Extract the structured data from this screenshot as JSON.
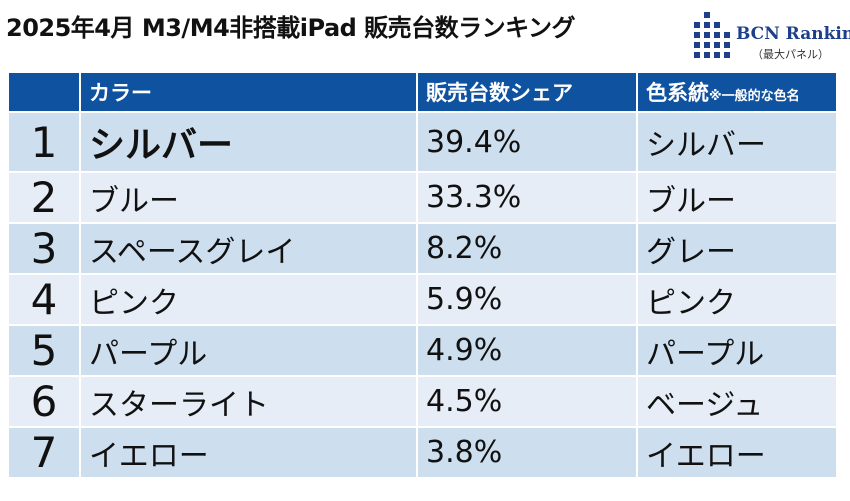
{
  "title": "2025年4月 M3/M4非搭載iPad 販売台数ランキング",
  "logo": {
    "name": "BCN Ranking",
    "sub": "（最大パネル）"
  },
  "chart_data": {
    "type": "table",
    "title": "2025年4月 M3/M4非搭載iPad 販売台数ランキング",
    "headers": [
      "",
      "カラー",
      "販売台数シェア",
      "色系統"
    ],
    "header_note": "※一般的な色名",
    "rows": [
      {
        "rank": "1",
        "color": "シルバー",
        "share": "39.4%",
        "family": "シルバー"
      },
      {
        "rank": "2",
        "color": "ブルー",
        "share": "33.3%",
        "family": "ブルー"
      },
      {
        "rank": "3",
        "color": "スペースグレイ",
        "share": "8.2%",
        "family": "グレー"
      },
      {
        "rank": "4",
        "color": "ピンク",
        "share": "5.9%",
        "family": "ピンク"
      },
      {
        "rank": "5",
        "color": "パープル",
        "share": "4.9%",
        "family": "パープル"
      },
      {
        "rank": "6",
        "color": "スターライト",
        "share": "4.5%",
        "family": "ベージュ"
      },
      {
        "rank": "7",
        "color": "イエロー",
        "share": "3.8%",
        "family": "イエロー"
      }
    ]
  },
  "colors": {
    "header": "#0f52a0",
    "row_odd": "#cddeef",
    "row_even": "#e6edf6"
  }
}
